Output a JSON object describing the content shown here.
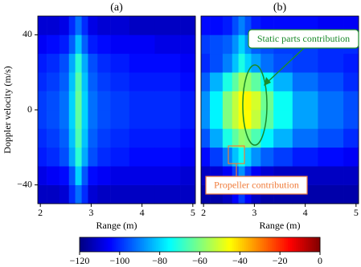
{
  "chart_data": [
    {
      "type": "heatmap",
      "title": "(a)",
      "xlabel": "Range (m)",
      "ylabel": "Doppler velocity (m/s)",
      "x": [
        2.0,
        2.25,
        2.5,
        2.625,
        2.75,
        2.875,
        3.0,
        3.25,
        3.5,
        4.0,
        4.5,
        5.0
      ],
      "y": [
        -45,
        -35,
        -25,
        -15,
        -5,
        5,
        15,
        25,
        35,
        45
      ],
      "z": [
        [
          -112,
          -112,
          -110,
          -100,
          -92,
          -100,
          -110,
          -112,
          -112,
          -112,
          -112,
          -112
        ],
        [
          -108,
          -106,
          -104,
          -95,
          -80,
          -95,
          -104,
          -106,
          -108,
          -108,
          -108,
          -110
        ],
        [
          -102,
          -100,
          -96,
          -85,
          -70,
          -85,
          -96,
          -100,
          -102,
          -104,
          -104,
          -106
        ],
        [
          -100,
          -98,
          -94,
          -82,
          -66,
          -82,
          -94,
          -98,
          -100,
          -102,
          -102,
          -104
        ],
        [
          -98,
          -96,
          -92,
          -80,
          -64,
          -80,
          -92,
          -96,
          -98,
          -100,
          -100,
          -102
        ],
        [
          -98,
          -96,
          -92,
          -80,
          -63,
          -80,
          -92,
          -96,
          -98,
          -100,
          -100,
          -102
        ],
        [
          -100,
          -98,
          -94,
          -82,
          -65,
          -82,
          -94,
          -98,
          -100,
          -102,
          -102,
          -104
        ],
        [
          -102,
          -100,
          -96,
          -85,
          -70,
          -85,
          -96,
          -100,
          -102,
          -104,
          -104,
          -106
        ],
        [
          -106,
          -104,
          -102,
          -94,
          -82,
          -94,
          -102,
          -104,
          -106,
          -106,
          -108,
          -108
        ],
        [
          -110,
          -110,
          -108,
          -100,
          -92,
          -100,
          -108,
          -110,
          -110,
          -112,
          -112,
          -112
        ]
      ],
      "xlim": [
        1.95,
        5.05
      ],
      "ylim": [
        -50,
        50
      ],
      "xticks": [
        2,
        3,
        4,
        5
      ],
      "yticks": [
        {
          "value": -40,
          "label": "−40"
        },
        0,
        40
      ]
    },
    {
      "type": "heatmap",
      "title": "(b)",
      "xlabel": "Range (m)",
      "x": [
        2.0,
        2.25,
        2.5,
        2.625,
        2.75,
        2.875,
        3.0,
        3.25,
        3.5,
        4.0,
        4.5,
        5.0
      ],
      "y": [
        -45,
        -35,
        -25,
        -15,
        -5,
        5,
        15,
        25,
        35,
        45
      ],
      "z": [
        [
          -115,
          -115,
          -112,
          -105,
          -98,
          -105,
          -112,
          -115,
          -115,
          -115,
          -115,
          -115
        ],
        [
          -112,
          -110,
          -106,
          -98,
          -88,
          -98,
          -106,
          -110,
          -112,
          -112,
          -112,
          -112
        ],
        [
          -104,
          -98,
          -90,
          -82,
          -74,
          -80,
          -88,
          -94,
          -98,
          -102,
          -104,
          -106
        ],
        [
          -95,
          -85,
          -72,
          -64,
          -58,
          -60,
          -66,
          -76,
          -84,
          -92,
          -96,
          -100
        ],
        [
          -88,
          -76,
          -60,
          -52,
          -46,
          -45,
          -52,
          -64,
          -74,
          -86,
          -92,
          -96
        ],
        [
          -88,
          -76,
          -60,
          -52,
          -45,
          -44,
          -50,
          -62,
          -74,
          -86,
          -92,
          -96
        ],
        [
          -94,
          -84,
          -72,
          -64,
          -56,
          -58,
          -64,
          -74,
          -84,
          -92,
          -96,
          -100
        ],
        [
          -100,
          -96,
          -90,
          -82,
          -72,
          -80,
          -86,
          -92,
          -96,
          -98,
          -100,
          -102
        ],
        [
          -98,
          -96,
          -94,
          -88,
          -80,
          -88,
          -94,
          -96,
          -98,
          -98,
          -100,
          -100
        ],
        [
          -104,
          -104,
          -102,
          -96,
          -90,
          -96,
          -102,
          -104,
          -104,
          -104,
          -106,
          -106
        ]
      ],
      "xlim": [
        1.95,
        5.05
      ],
      "ylim": [
        -50,
        50
      ],
      "xticks": [
        2,
        3,
        4,
        5
      ],
      "annotations": [
        "Static parts contribution",
        "Propeller contribution"
      ]
    }
  ],
  "colorbar": {
    "colormap": "jet",
    "clim": [
      -120,
      0
    ],
    "ticks": [
      {
        "value": -120,
        "label": "−120"
      },
      {
        "value": -100,
        "label": "−100"
      },
      {
        "value": -80,
        "label": "−80"
      },
      {
        "value": -60,
        "label": "−60"
      },
      {
        "value": -40,
        "label": "−40"
      },
      {
        "value": -20,
        "label": "−20"
      },
      0
    ]
  }
}
